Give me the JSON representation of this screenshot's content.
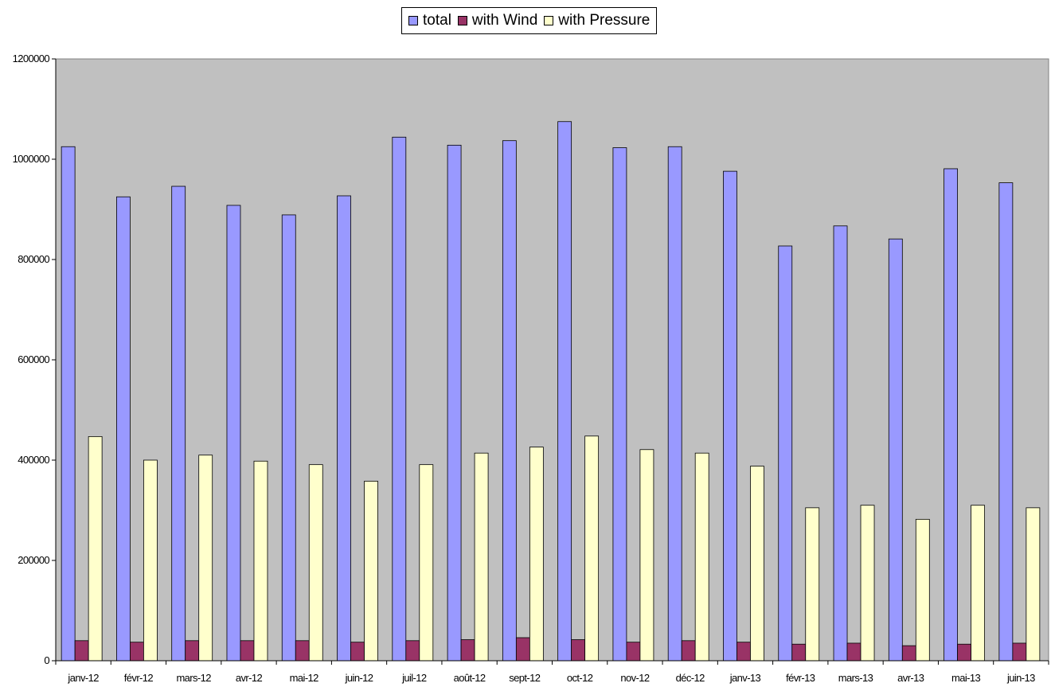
{
  "chart_data": {
    "type": "bar",
    "categories": [
      "janv-12",
      "févr-12",
      "mars-12",
      "avr-12",
      "mai-12",
      "juin-12",
      "juil-12",
      "août-12",
      "sept-12",
      "oct-12",
      "nov-12",
      "déc-12",
      "janv-13",
      "févr-13",
      "mars-13",
      "avr-13",
      "mai-13",
      "juin-13"
    ],
    "series": [
      {
        "name": "total",
        "color": "#9999ff",
        "values": [
          1025000,
          925000,
          946000,
          908000,
          889000,
          927000,
          1044000,
          1028000,
          1037000,
          1075000,
          1023000,
          1025000,
          976000,
          827000,
          867000,
          841000,
          981000,
          953000
        ]
      },
      {
        "name": "with Wind",
        "color": "#993366",
        "values": [
          40000,
          37000,
          40000,
          40000,
          40000,
          37000,
          40000,
          42000,
          46000,
          42000,
          37000,
          40000,
          37000,
          33000,
          35000,
          30000,
          33000,
          35000
        ]
      },
      {
        "name": "with Pressure",
        "color": "#ffffcc",
        "values": [
          447000,
          400000,
          410000,
          398000,
          391000,
          358000,
          391000,
          414000,
          426000,
          448000,
          421000,
          414000,
          388000,
          305000,
          310000,
          282000,
          310000,
          305000
        ]
      }
    ],
    "ylim": [
      0,
      1200000
    ],
    "yticks": [
      "0",
      "200000",
      "400000",
      "600000",
      "800000",
      "1000000",
      "1200000"
    ],
    "title": "",
    "xlabel": "",
    "ylabel": "",
    "grid": false,
    "plot_background": "#c0c0c0",
    "legend": "top-center"
  }
}
